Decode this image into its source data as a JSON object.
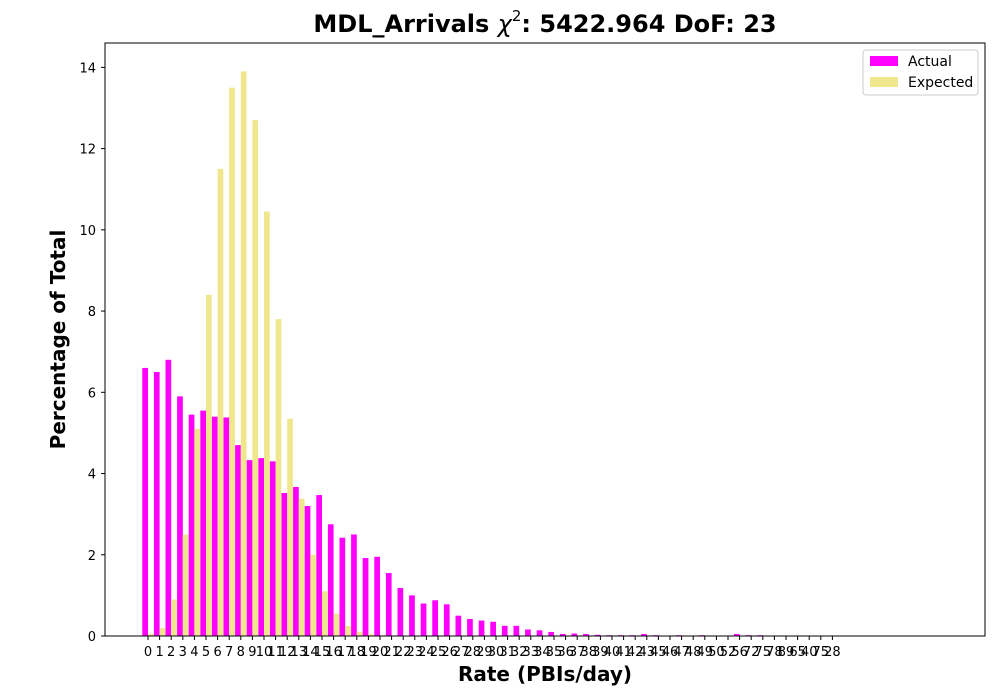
{
  "chart_data": {
    "type": "bar",
    "title_prefix": "MDL_Arrivals ",
    "title_chi": "χ",
    "title_sup": "2",
    "title_suffix": ": 5422.964 DoF: 23",
    "xlabel": "Rate (PBIs/day)",
    "ylabel": "Percentage of Total",
    "ylim": [
      0,
      14.6
    ],
    "yticks": [
      0,
      2,
      4,
      6,
      8,
      10,
      12,
      14
    ],
    "legend_position": "top-right",
    "grid": false,
    "categories": [
      "0",
      "1",
      "2",
      "3",
      "4",
      "5",
      "6",
      "7",
      "8",
      "9",
      "10",
      "11",
      "12",
      "13",
      "14",
      "15",
      "16",
      "17",
      "18",
      "19",
      "20",
      "21",
      "22",
      "23",
      "24",
      "25",
      "26",
      "27",
      "28",
      "29",
      "30",
      "31",
      "32",
      "33",
      "34",
      "35",
      "36",
      "37",
      "38",
      "39",
      "40",
      "41",
      "42",
      "43",
      "45",
      "46",
      "47",
      "48",
      "49",
      "50",
      "52",
      "56",
      "72",
      "75",
      "78",
      "89",
      "65",
      "40",
      "75",
      "28"
    ],
    "series": [
      {
        "name": "Actual",
        "color": "#ff00ff",
        "values": [
          6.6,
          6.5,
          6.8,
          5.9,
          5.45,
          5.55,
          5.4,
          5.38,
          4.7,
          4.33,
          4.38,
          4.3,
          3.52,
          3.67,
          3.2,
          3.47,
          2.75,
          2.42,
          2.5,
          1.92,
          1.95,
          1.55,
          1.18,
          1.0,
          0.8,
          0.88,
          0.78,
          0.5,
          0.42,
          0.38,
          0.35,
          0.25,
          0.25,
          0.16,
          0.14,
          0.1,
          0.05,
          0.06,
          0.05,
          0.03,
          0.02,
          0.02,
          0.02,
          0.05,
          0.02,
          0.01,
          0.02,
          0.01,
          0.02,
          0.01,
          0.01,
          0.05,
          0.02,
          0.02,
          0.01,
          0.01,
          0.01,
          0.01,
          0.01,
          0.01
        ]
      },
      {
        "name": "Expected",
        "color": "#f0e68c",
        "values": [
          0.05,
          0.2,
          0.9,
          2.5,
          5.1,
          8.4,
          11.5,
          13.5,
          13.9,
          12.7,
          10.45,
          7.8,
          5.35,
          3.38,
          2.0,
          1.1,
          0.55,
          0.25,
          0.1,
          0.04,
          0.02,
          0.01,
          0,
          0,
          0,
          0,
          0,
          0,
          0,
          0,
          0,
          0,
          0,
          0,
          0,
          0,
          0,
          0,
          0,
          0,
          0,
          0,
          0,
          0,
          0,
          0,
          0,
          0,
          0,
          0,
          0,
          0,
          0,
          0,
          0,
          0,
          0,
          0,
          0,
          0
        ]
      }
    ]
  }
}
